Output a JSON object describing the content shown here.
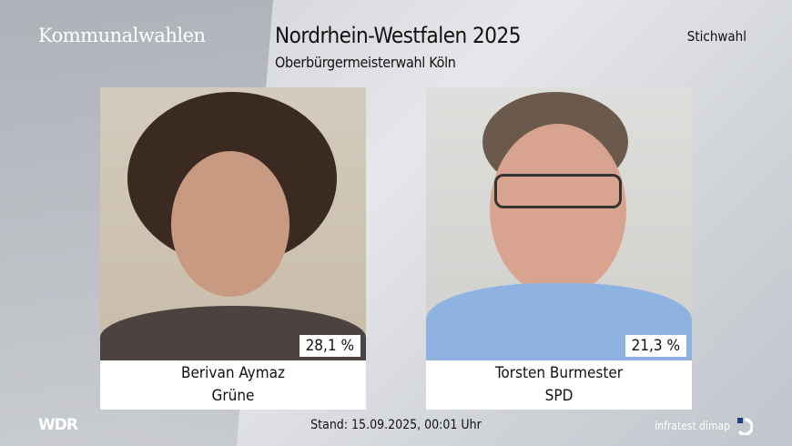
{
  "header": {
    "brand": "Kommunalwahlen",
    "title": "Nordrhein-Westfalen 2025",
    "subtitle": "Oberbürgermeisterwahl Köln",
    "election_type": "Stichwahl"
  },
  "candidates": [
    {
      "name": "Berivan Aymaz",
      "party": "Grüne",
      "percent": "28,1 %"
    },
    {
      "name": "Torsten Burmester",
      "party": "SPD",
      "percent": "21,3 %"
    }
  ],
  "footer": {
    "broadcaster_logo": "WDR",
    "timestamp": "Stand: 15.09.2025, 00:01 Uhr",
    "pollster": "infratest dimap"
  },
  "colors": {
    "accent": "#1d3f7a",
    "label_bg": "#ffffff"
  }
}
